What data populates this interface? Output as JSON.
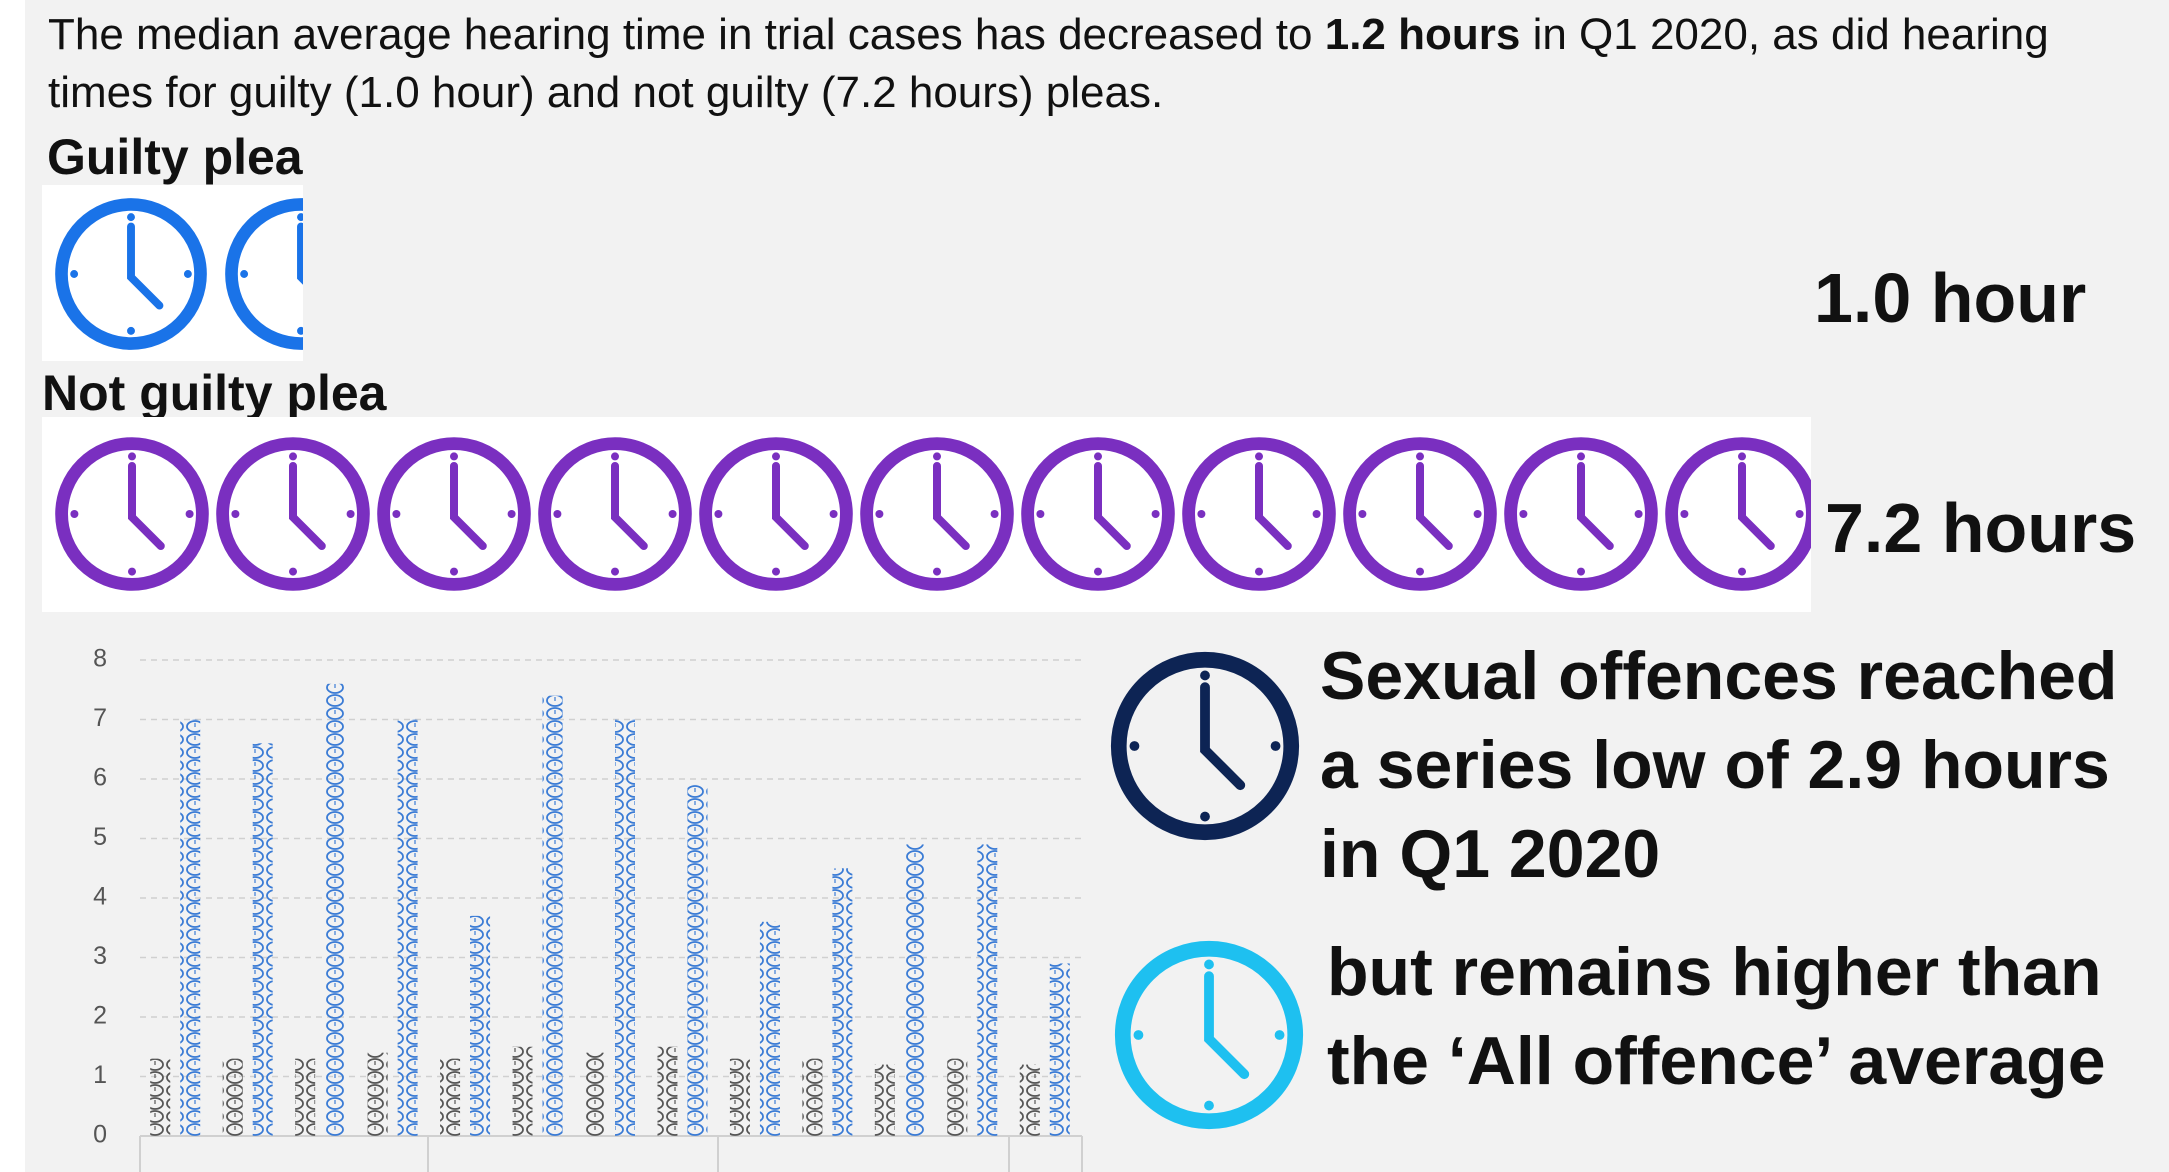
{
  "intro": {
    "before": "The median average hearing time in trial cases has decreased to ",
    "bold": "1.2 hours",
    "after": " in Q1 2020, as did hearing times for guilty (1.0 hour) and not guilty (7.2 hours) pleas."
  },
  "guilty": {
    "label": "Guilty plea",
    "value_text": "1.0 hour"
  },
  "not_guilty": {
    "label": "Not guilty plea",
    "value_text": "7.2 hours"
  },
  "chart_data": {
    "type": "bar",
    "categories": [
      null,
      null,
      null,
      null,
      null,
      null,
      null,
      null,
      null,
      null,
      null,
      null,
      null
    ],
    "series": [
      {
        "color": "#555555",
        "values": [
          1.3,
          1.3,
          1.3,
          1.4,
          1.3,
          1.5,
          1.4,
          1.5,
          1.3,
          1.3,
          1.2,
          1.3,
          1.2
        ]
      },
      {
        "color": "#3a7bd5",
        "values": [
          7.0,
          6.6,
          7.6,
          7.0,
          3.7,
          7.4,
          7.0,
          5.9,
          3.6,
          4.5,
          4.9,
          4.9,
          2.9
        ]
      }
    ],
    "ylim": [
      0,
      8
    ],
    "yticks": [
      0,
      1,
      2,
      3,
      4,
      5,
      6,
      7,
      8
    ],
    "grid": true
  },
  "callouts": [
    {
      "text": "Sexual offences reached a series low of 2.9 hours in Q1 2020",
      "color": "#0d2454"
    },
    {
      "text": "but remains higher than the ‘All offence’ average",
      "color": "#1ec0f0"
    }
  ]
}
